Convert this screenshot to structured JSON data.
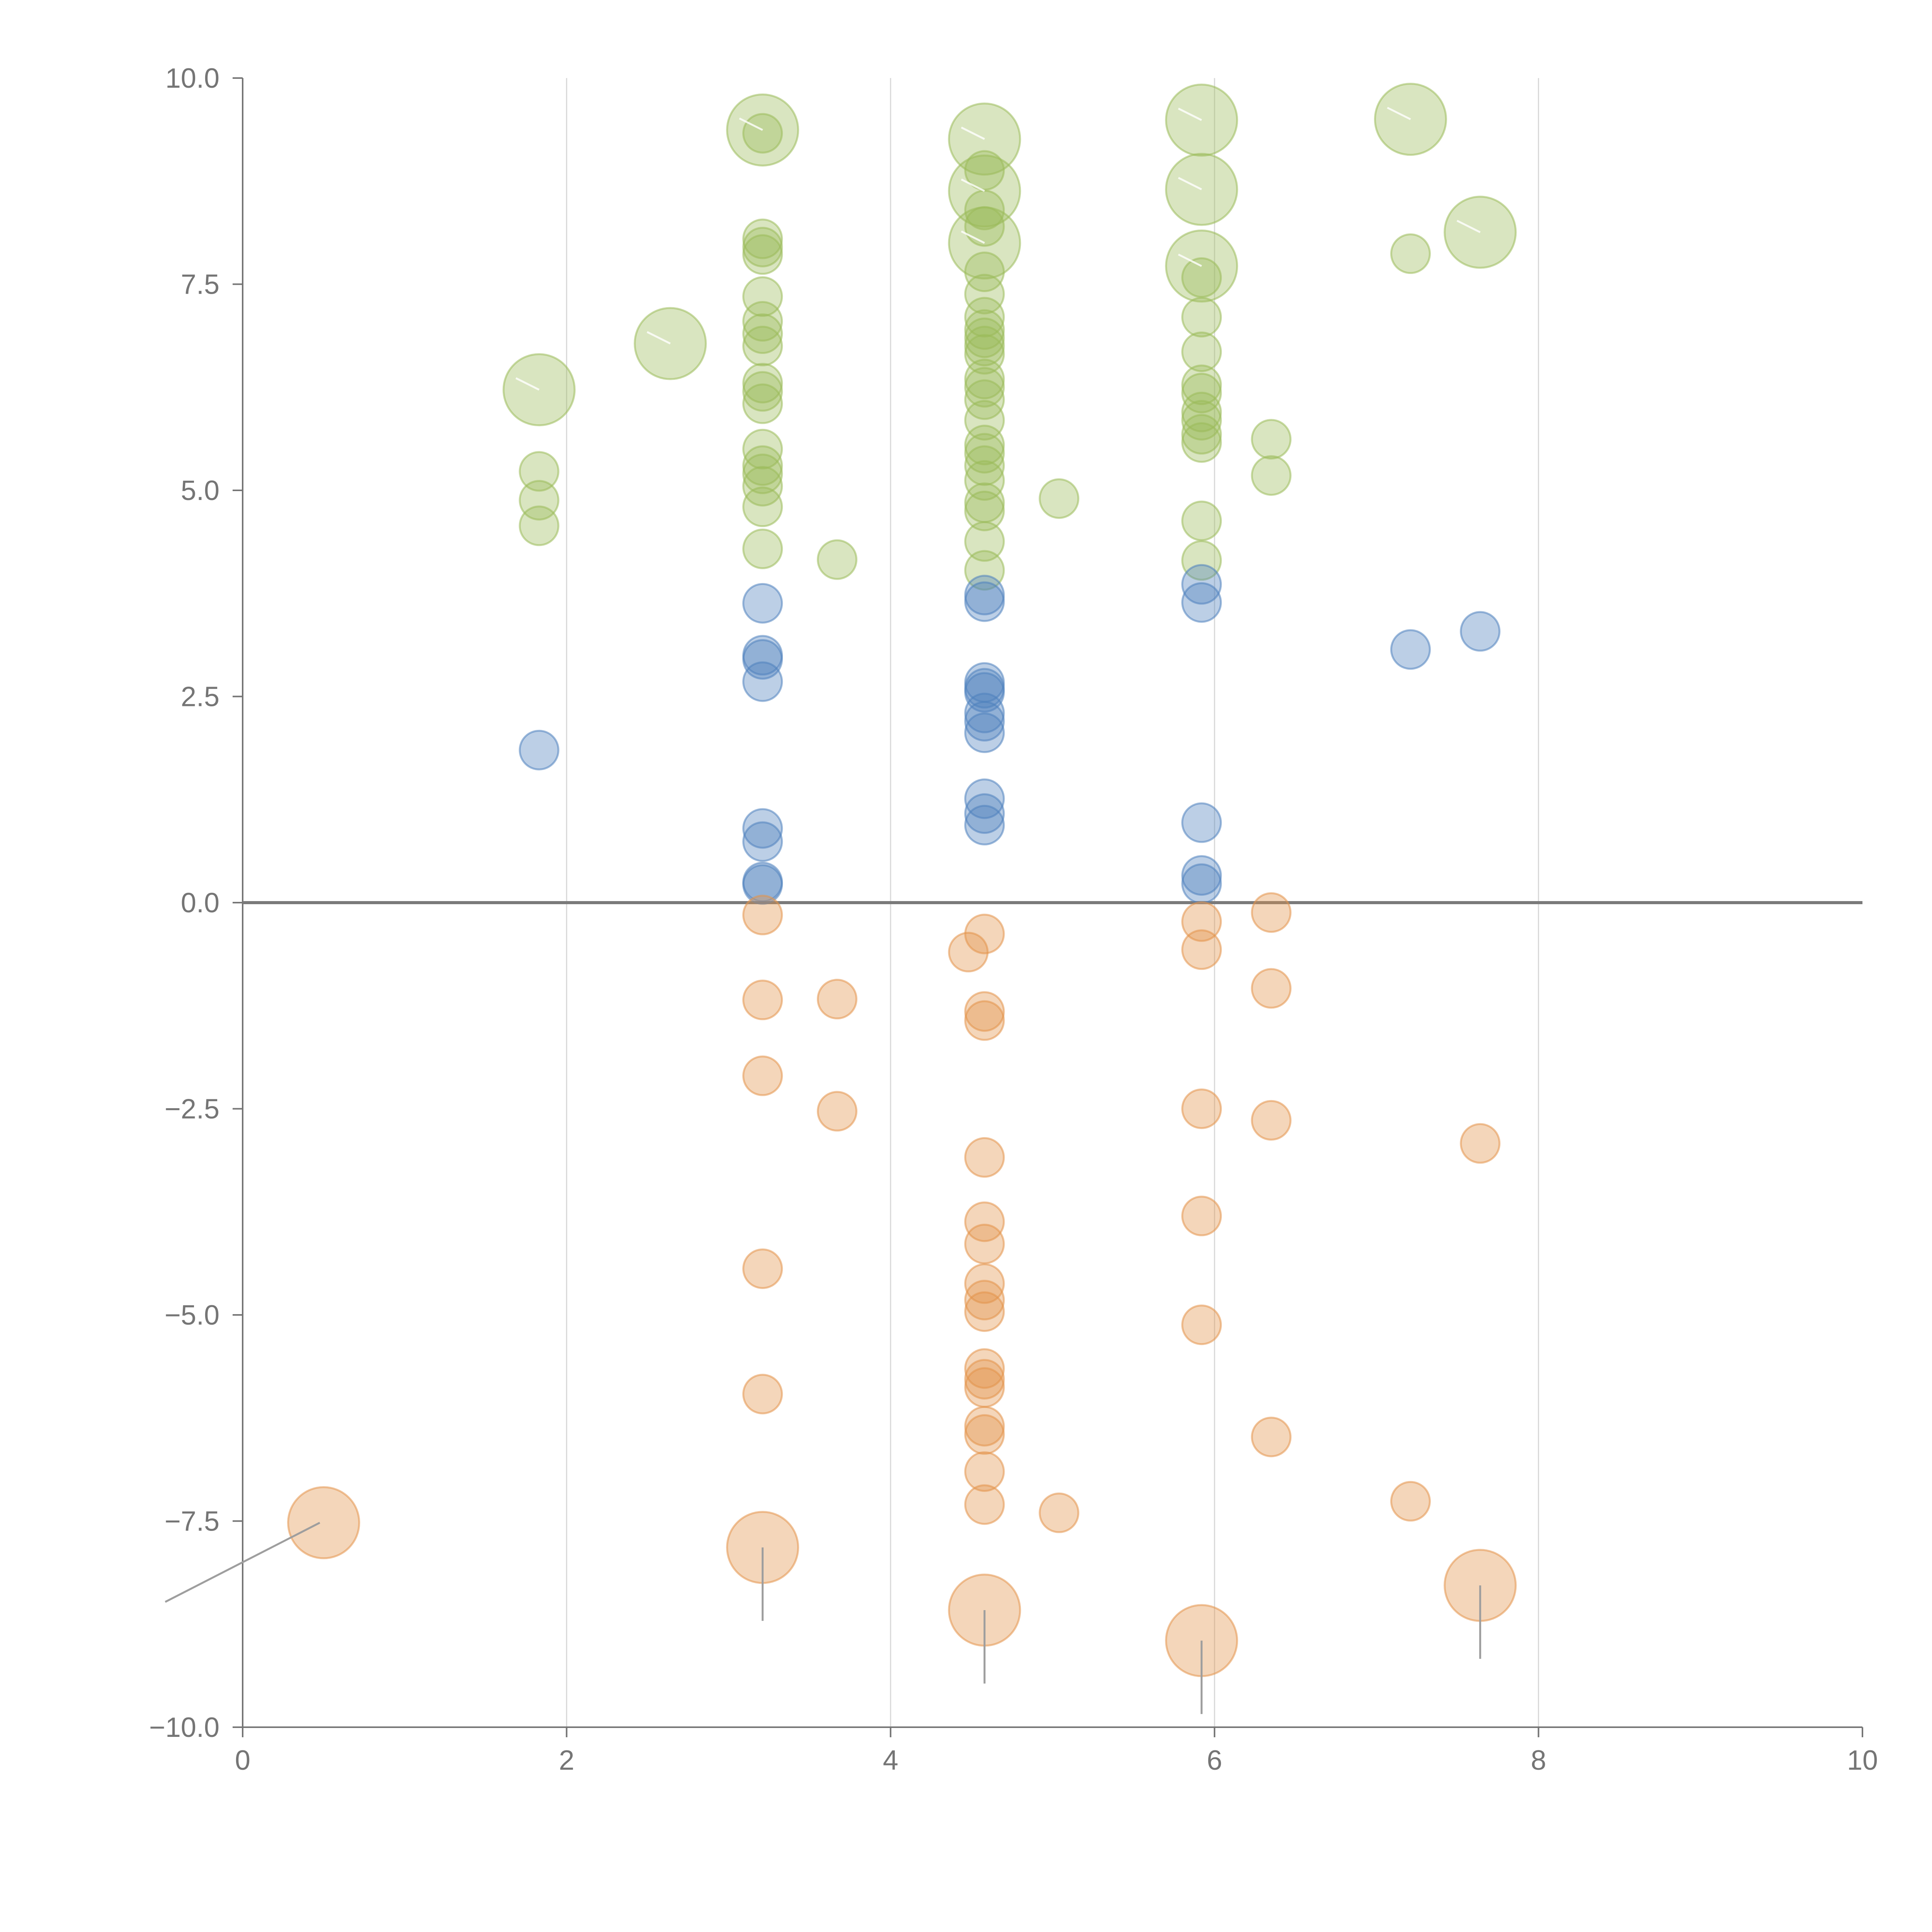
{
  "chart_data": {
    "type": "scatter",
    "title": "",
    "xlabel": "",
    "ylabel": "",
    "xlim": [
      0,
      10
    ],
    "ylim": [
      -10,
      10
    ],
    "xticks": [
      0,
      2,
      4,
      6,
      8,
      10
    ],
    "xtick_labels": [
      "0",
      "2",
      "4",
      "6",
      "8",
      "10"
    ],
    "yticks": [
      10,
      7.5,
      5,
      2.5,
      0,
      -2.5,
      -5,
      -7.5,
      -10
    ],
    "ytick_labels": [
      "10.0",
      "7.5",
      "5.0",
      "2.5",
      "0.0",
      "−2.5",
      "−5.0",
      "−7.5",
      "−10.0"
    ],
    "grid": "vertical",
    "zero_line": 0,
    "colors": {
      "green": "#9bbb59",
      "blue": "#4f81bd",
      "orange": "#e3934a",
      "axis": "#757575",
      "grid": "#d8d8d8",
      "zero_line": "#7a7a7a",
      "leader": "#9e9e9e"
    },
    "series": [
      {
        "color": "green",
        "points": [
          {
            "x": 1.83,
            "y": 6.22,
            "s": "large"
          },
          {
            "x": 1.83,
            "y": 5.23
          },
          {
            "x": 1.83,
            "y": 4.88
          },
          {
            "x": 1.83,
            "y": 4.57
          },
          {
            "x": 2.64,
            "y": 6.78,
            "s": "large"
          },
          {
            "x": 3.21,
            "y": 9.37,
            "s": "large"
          },
          {
            "x": 3.21,
            "y": 9.33
          },
          {
            "x": 3.21,
            "y": 8.05
          },
          {
            "x": 3.21,
            "y": 7.95
          },
          {
            "x": 3.21,
            "y": 7.86
          },
          {
            "x": 3.21,
            "y": 7.35
          },
          {
            "x": 3.21,
            "y": 7.05
          },
          {
            "x": 3.21,
            "y": 6.9
          },
          {
            "x": 3.21,
            "y": 6.75
          },
          {
            "x": 3.21,
            "y": 6.3
          },
          {
            "x": 3.21,
            "y": 6.2
          },
          {
            "x": 3.21,
            "y": 6.05
          },
          {
            "x": 3.21,
            "y": 5.5
          },
          {
            "x": 3.21,
            "y": 5.3
          },
          {
            "x": 3.21,
            "y": 5.2
          },
          {
            "x": 3.21,
            "y": 5.05
          },
          {
            "x": 3.21,
            "y": 4.8
          },
          {
            "x": 3.21,
            "y": 4.29
          },
          {
            "x": 3.67,
            "y": 4.16
          },
          {
            "x": 4.58,
            "y": 9.26,
            "s": "large"
          },
          {
            "x": 4.58,
            "y": 8.88
          },
          {
            "x": 4.58,
            "y": 8.63,
            "s": "large"
          },
          {
            "x": 4.58,
            "y": 8.4
          },
          {
            "x": 4.58,
            "y": 8.2
          },
          {
            "x": 4.58,
            "y": 8.0,
            "s": "large"
          },
          {
            "x": 4.58,
            "y": 7.65
          },
          {
            "x": 4.58,
            "y": 7.38
          },
          {
            "x": 4.58,
            "y": 7.1
          },
          {
            "x": 4.58,
            "y": 6.95
          },
          {
            "x": 4.58,
            "y": 6.85
          },
          {
            "x": 4.58,
            "y": 6.75
          },
          {
            "x": 4.58,
            "y": 6.65
          },
          {
            "x": 4.58,
            "y": 6.35
          },
          {
            "x": 4.58,
            "y": 6.25
          },
          {
            "x": 4.58,
            "y": 6.1
          },
          {
            "x": 4.58,
            "y": 5.85
          },
          {
            "x": 4.58,
            "y": 5.55
          },
          {
            "x": 4.58,
            "y": 5.45
          },
          {
            "x": 4.58,
            "y": 5.3
          },
          {
            "x": 4.58,
            "y": 5.12
          },
          {
            "x": 4.58,
            "y": 4.85
          },
          {
            "x": 4.58,
            "y": 4.75
          },
          {
            "x": 4.58,
            "y": 4.38
          },
          {
            "x": 4.58,
            "y": 4.03
          },
          {
            "x": 5.04,
            "y": 4.9
          },
          {
            "x": 5.92,
            "y": 9.49,
            "s": "large"
          },
          {
            "x": 5.92,
            "y": 8.65,
            "s": "large"
          },
          {
            "x": 5.92,
            "y": 7.72,
            "s": "large"
          },
          {
            "x": 5.92,
            "y": 7.58
          },
          {
            "x": 5.92,
            "y": 7.1
          },
          {
            "x": 5.92,
            "y": 6.68
          },
          {
            "x": 5.92,
            "y": 6.28
          },
          {
            "x": 5.92,
            "y": 6.18
          },
          {
            "x": 5.92,
            "y": 5.95
          },
          {
            "x": 5.92,
            "y": 5.85
          },
          {
            "x": 5.92,
            "y": 5.68
          },
          {
            "x": 5.92,
            "y": 5.58
          },
          {
            "x": 5.92,
            "y": 4.63
          },
          {
            "x": 5.92,
            "y": 4.15
          },
          {
            "x": 6.35,
            "y": 5.62
          },
          {
            "x": 6.35,
            "y": 5.18
          },
          {
            "x": 7.21,
            "y": 9.5,
            "s": "large"
          },
          {
            "x": 7.21,
            "y": 7.87
          },
          {
            "x": 7.64,
            "y": 8.13,
            "s": "large"
          }
        ]
      },
      {
        "color": "blue",
        "points": [
          {
            "x": 1.83,
            "y": 1.85
          },
          {
            "x": 3.21,
            "y": 3.63
          },
          {
            "x": 3.21,
            "y": 3.0
          },
          {
            "x": 3.21,
            "y": 2.95
          },
          {
            "x": 3.21,
            "y": 2.68
          },
          {
            "x": 3.21,
            "y": 0.9
          },
          {
            "x": 3.21,
            "y": 0.74
          },
          {
            "x": 3.21,
            "y": 0.25
          },
          {
            "x": 3.21,
            "y": 0.22
          },
          {
            "x": 4.58,
            "y": 3.73
          },
          {
            "x": 4.58,
            "y": 3.65
          },
          {
            "x": 4.58,
            "y": 2.67
          },
          {
            "x": 4.58,
            "y": 2.6
          },
          {
            "x": 4.58,
            "y": 2.55
          },
          {
            "x": 4.58,
            "y": 2.3
          },
          {
            "x": 4.58,
            "y": 2.2
          },
          {
            "x": 4.58,
            "y": 2.06
          },
          {
            "x": 4.58,
            "y": 1.26
          },
          {
            "x": 4.58,
            "y": 1.08
          },
          {
            "x": 4.58,
            "y": 0.94
          },
          {
            "x": 5.92,
            "y": 3.86
          },
          {
            "x": 5.92,
            "y": 3.64
          },
          {
            "x": 5.92,
            "y": 0.97
          },
          {
            "x": 5.92,
            "y": 0.33
          },
          {
            "x": 5.92,
            "y": 0.23
          },
          {
            "x": 7.21,
            "y": 3.07
          },
          {
            "x": 7.64,
            "y": 3.29
          }
        ]
      },
      {
        "color": "orange",
        "points": [
          {
            "x": 0.5,
            "y": -7.52,
            "s": "large"
          },
          {
            "x": 3.21,
            "y": -0.15
          },
          {
            "x": 3.21,
            "y": -1.18
          },
          {
            "x": 3.21,
            "y": -2.1
          },
          {
            "x": 3.21,
            "y": -4.44
          },
          {
            "x": 3.21,
            "y": -5.96
          },
          {
            "x": 3.21,
            "y": -7.82,
            "s": "large"
          },
          {
            "x": 3.67,
            "y": -1.17
          },
          {
            "x": 3.67,
            "y": -2.53
          },
          {
            "x": 4.48,
            "y": -0.6
          },
          {
            "x": 4.58,
            "y": -0.38
          },
          {
            "x": 4.58,
            "y": -1.32
          },
          {
            "x": 4.58,
            "y": -1.43
          },
          {
            "x": 4.58,
            "y": -3.09
          },
          {
            "x": 4.58,
            "y": -3.87
          },
          {
            "x": 4.58,
            "y": -4.14
          },
          {
            "x": 4.58,
            "y": -4.62
          },
          {
            "x": 4.58,
            "y": -4.82
          },
          {
            "x": 4.58,
            "y": -4.96
          },
          {
            "x": 4.58,
            "y": -5.65
          },
          {
            "x": 4.58,
            "y": -5.78
          },
          {
            "x": 4.58,
            "y": -5.88
          },
          {
            "x": 4.58,
            "y": -6.35
          },
          {
            "x": 4.58,
            "y": -6.45
          },
          {
            "x": 4.58,
            "y": -6.9
          },
          {
            "x": 4.58,
            "y": -7.3
          },
          {
            "x": 4.58,
            "y": -8.58,
            "s": "large"
          },
          {
            "x": 5.04,
            "y": -7.4
          },
          {
            "x": 5.92,
            "y": -0.23
          },
          {
            "x": 5.92,
            "y": -0.57
          },
          {
            "x": 5.92,
            "y": -2.5
          },
          {
            "x": 5.92,
            "y": -3.8
          },
          {
            "x": 5.92,
            "y": -5.12
          },
          {
            "x": 5.92,
            "y": -8.95,
            "s": "large"
          },
          {
            "x": 6.35,
            "y": -0.12
          },
          {
            "x": 6.35,
            "y": -1.04
          },
          {
            "x": 6.35,
            "y": -2.64
          },
          {
            "x": 6.35,
            "y": -6.48
          },
          {
            "x": 7.21,
            "y": -7.26
          },
          {
            "x": 7.64,
            "y": -2.92
          },
          {
            "x": 7.64,
            "y": -8.28,
            "s": "large"
          }
        ]
      }
    ]
  }
}
